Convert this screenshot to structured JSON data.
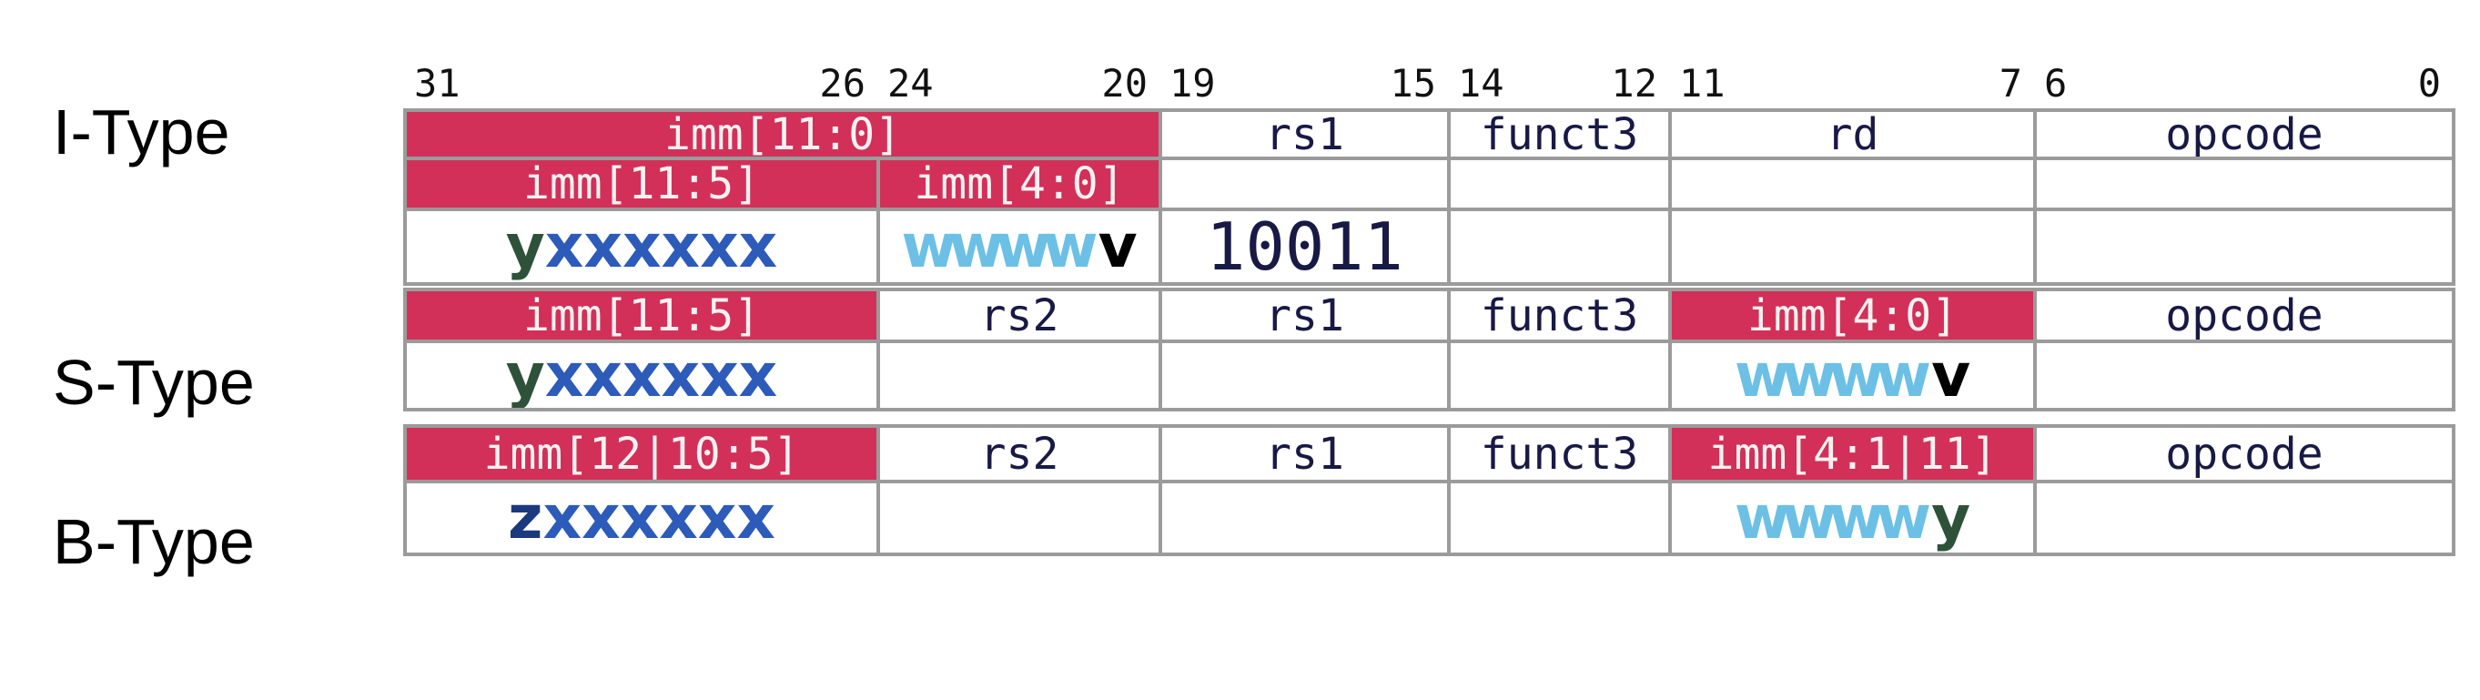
{
  "diagram": {
    "title_hint": "RISC-V instruction format bit-field diagram",
    "colors": {
      "imm_background": "#d23059",
      "imm_text": "#f7f2f1",
      "field_text": "#181945",
      "border": "#9b9b9b",
      "bit_numbers": "#111111",
      "label_text": "#000000"
    },
    "char_colors": {
      "y": "#2e5239",
      "x": "#2d5bba",
      "w": "#6cc0e5",
      "v": "#000000",
      "z": "#1b3a7d"
    },
    "bit_headers": [
      {
        "hi": "31",
        "lo": "26"
      },
      {
        "hi": "24",
        "lo": "20"
      },
      {
        "hi": "19",
        "lo": "15"
      },
      {
        "hi": "14",
        "lo": "12"
      },
      {
        "hi": "11",
        "lo": "7"
      },
      {
        "hi": "6",
        "lo": "0"
      }
    ],
    "formats": [
      {
        "label": "I-Type",
        "rows": [
          [
            {
              "t": "imm[11:0]",
              "k": "imm",
              "span": 2
            },
            {
              "t": "rs1",
              "k": "field"
            },
            {
              "t": "funct3",
              "k": "field"
            },
            {
              "t": "rd",
              "k": "field"
            },
            {
              "t": "opcode",
              "k": "field"
            }
          ],
          [
            {
              "t": "imm[11:5]",
              "k": "imm"
            },
            {
              "t": "imm[4:0]",
              "k": "imm"
            },
            {
              "t": "",
              "k": "empty"
            },
            {
              "t": "",
              "k": "empty"
            },
            {
              "t": "",
              "k": "empty"
            },
            {
              "t": "",
              "k": "empty"
            }
          ],
          [
            {
              "t": "yxxxxxx",
              "k": "value"
            },
            {
              "t": "wwwwv",
              "k": "value"
            },
            {
              "t": "10011",
              "k": "binary"
            },
            {
              "t": "",
              "k": "empty"
            },
            {
              "t": "",
              "k": "empty"
            },
            {
              "t": "",
              "k": "empty"
            }
          ]
        ]
      },
      {
        "label": "S-Type",
        "rows": [
          [
            {
              "t": "imm[11:5]",
              "k": "imm"
            },
            {
              "t": "rs2",
              "k": "field"
            },
            {
              "t": "rs1",
              "k": "field"
            },
            {
              "t": "funct3",
              "k": "field"
            },
            {
              "t": "imm[4:0]",
              "k": "imm"
            },
            {
              "t": "opcode",
              "k": "field"
            }
          ],
          [
            {
              "t": "yxxxxxx",
              "k": "value"
            },
            {
              "t": "",
              "k": "empty"
            },
            {
              "t": "",
              "k": "empty"
            },
            {
              "t": "",
              "k": "empty"
            },
            {
              "t": "wwwwv",
              "k": "value"
            },
            {
              "t": "",
              "k": "empty"
            }
          ]
        ]
      },
      {
        "label": "B-Type",
        "rows": [
          [
            {
              "t": "imm[12|10:5]",
              "k": "imm"
            },
            {
              "t": "rs2",
              "k": "field"
            },
            {
              "t": "rs1",
              "k": "field"
            },
            {
              "t": "funct3",
              "k": "field"
            },
            {
              "t": "imm[4:1|11]",
              "k": "imm"
            },
            {
              "t": "opcode",
              "k": "field"
            }
          ],
          [
            {
              "t": "zxxxxxx",
              "k": "value"
            },
            {
              "t": "",
              "k": "empty"
            },
            {
              "t": "",
              "k": "empty"
            },
            {
              "t": "",
              "k": "empty"
            },
            {
              "t": "wwwwy",
              "k": "value"
            },
            {
              "t": "",
              "k": "empty"
            }
          ]
        ]
      }
    ]
  }
}
